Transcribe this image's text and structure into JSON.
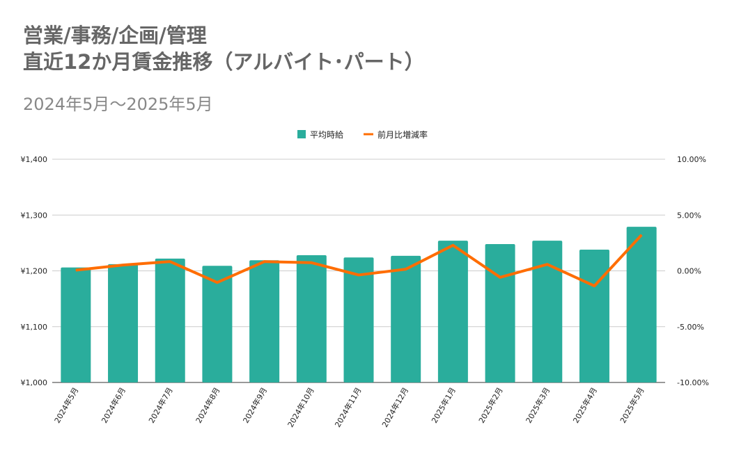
{
  "chart_data": {
    "type": "bar",
    "title_line1": "営業/事務/企画/管理",
    "title_line2": "直近12か月賃金推移（アルバイト･パート）",
    "subtitle": "2024年5月～2025年5月",
    "categories": [
      "2024年5月",
      "2024年6月",
      "2024年7月",
      "2024年8月",
      "2024年9月",
      "2024年10月",
      "2024年11月",
      "2024年12月",
      "2025年1月",
      "2025年2月",
      "2025年3月",
      "2025年4月",
      "2025年5月"
    ],
    "series": [
      {
        "name": "平均時給",
        "type": "bar",
        "axis": "left",
        "color": "#2aad9c",
        "values": [
          1206,
          1212,
          1222,
          1209,
          1219,
          1228,
          1224,
          1227,
          1254,
          1248,
          1254,
          1238,
          1279
        ]
      },
      {
        "name": "前月比増減率",
        "type": "line",
        "axis": "right",
        "color": "#ff6d01",
        "values": [
          0.06,
          0.52,
          0.83,
          -1.04,
          0.83,
          0.73,
          -0.37,
          0.15,
          2.29,
          -0.58,
          0.58,
          -1.35,
          3.22
        ]
      }
    ],
    "left_axis": {
      "ylim": [
        1000,
        1400
      ],
      "ticks": [
        "¥1,000",
        "¥1,100",
        "¥1,200",
        "¥1,300",
        "¥1,400"
      ]
    },
    "right_axis": {
      "ylim": [
        -10,
        10
      ],
      "ticks": [
        "-10.00%",
        "-5.00%",
        "0.00%",
        "5.00%",
        "10.00%"
      ]
    },
    "legend_position": "top-center",
    "grid": true
  }
}
